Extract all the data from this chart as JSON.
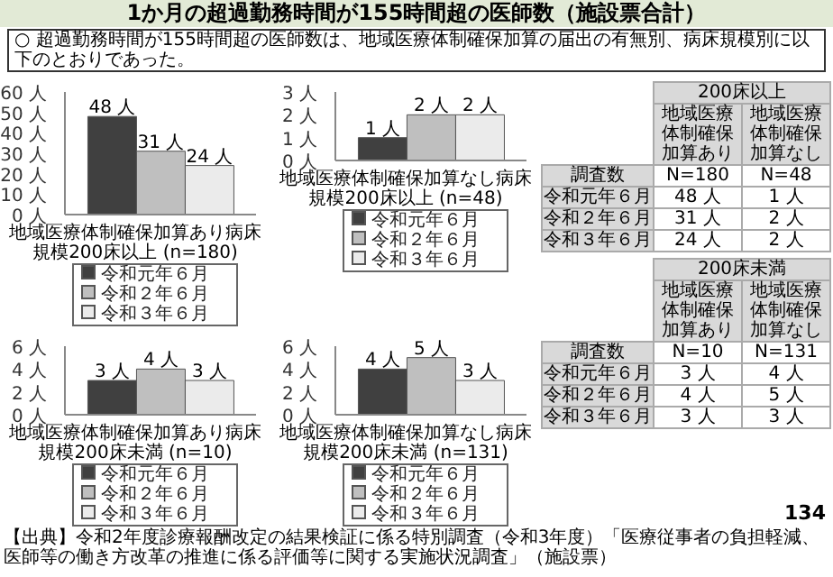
{
  "chart_data": [
    {
      "type": "other",
      "title": "1か月の超過勤務時間が155時間超の医師数（施設票合計）",
      "subtitle": "○ 超過勤務時間が155時間超の医師数は、地域医療体制確保加算の届出の有無別、病床規模別に以下のとおりであった。",
      "annotations": [
        "【出典】令和2年度診療報酬改定の結果検証に係る特別調査（令和3年度）「医療従事者の負担軽減、医師等の働き方改革の推進に係る評価等に関する実施状況調査」（施設票）",
        "134"
      ]
    },
    {
      "type": "bar",
      "categories": [
        null
      ],
      "xlabel": "地域医療体制確保加算あり病床規模200床以上 (n=180)",
      "ylim": [
        0,
        60
      ],
      "yticks": [
        {
          "value": 0,
          "label": "0 人"
        },
        {
          "value": 10,
          "label": "10 人"
        },
        {
          "value": 20,
          "label": "20 人"
        },
        {
          "value": 30,
          "label": "30 人"
        },
        {
          "value": 40,
          "label": "40 人"
        },
        {
          "value": 50,
          "label": "50 人"
        },
        {
          "value": 60,
          "label": "60 人"
        }
      ],
      "legend": "bottom",
      "series": [
        {
          "name": "令和元年６月",
          "color": "#404040",
          "values": [
            48
          ],
          "value_labels": [
            "48 人"
          ]
        },
        {
          "name": "令和２年６月",
          "color": "#bfbfbf",
          "values": [
            31
          ],
          "value_labels": [
            "31 人"
          ]
        },
        {
          "name": "令和３年６月",
          "color": "#ebebeb",
          "values": [
            24
          ],
          "value_labels": [
            "24 人"
          ]
        }
      ]
    },
    {
      "type": "bar",
      "categories": [
        null
      ],
      "xlabel": "地域医療体制確保加算なし病床規模200床以上 (n=48)",
      "ylim": [
        0,
        3
      ],
      "yticks": [
        {
          "value": 0,
          "label": "0 人"
        },
        {
          "value": 1,
          "label": "1 人"
        },
        {
          "value": 2,
          "label": "2 人"
        },
        {
          "value": 3,
          "label": "3 人"
        }
      ],
      "legend": "bottom",
      "series": [
        {
          "name": "令和元年６月",
          "color": "#404040",
          "values": [
            1
          ],
          "value_labels": [
            "1 人"
          ]
        },
        {
          "name": "令和２年６月",
          "color": "#bfbfbf",
          "values": [
            2
          ],
          "value_labels": [
            "2 人"
          ]
        },
        {
          "name": "令和３年６月",
          "color": "#ebebeb",
          "values": [
            2
          ],
          "value_labels": [
            "2 人"
          ]
        }
      ]
    },
    {
      "type": "bar",
      "categories": [
        null
      ],
      "xlabel": "地域医療体制確保加算あり病床規模200床未満 (n=10)",
      "ylim": [
        0,
        6
      ],
      "yticks": [
        {
          "value": 0,
          "label": "0 人"
        },
        {
          "value": 2,
          "label": "2 人"
        },
        {
          "value": 4,
          "label": "4 人"
        },
        {
          "value": 6,
          "label": "6 人"
        }
      ],
      "legend": "bottom",
      "series": [
        {
          "name": "令和元年６月",
          "color": "#404040",
          "values": [
            3
          ],
          "value_labels": [
            "3 人"
          ]
        },
        {
          "name": "令和２年６月",
          "color": "#bfbfbf",
          "values": [
            4
          ],
          "value_labels": [
            "4 人"
          ]
        },
        {
          "name": "令和３年６月",
          "color": "#ebebeb",
          "values": [
            3
          ],
          "value_labels": [
            "3 人"
          ]
        }
      ]
    },
    {
      "type": "bar",
      "categories": [
        null
      ],
      "xlabel": "地域医療体制確保加算なし病床規模200床未満 (n=131)",
      "ylim": [
        0,
        6
      ],
      "yticks": [
        {
          "value": 0,
          "label": "0 人"
        },
        {
          "value": 2,
          "label": "2 人"
        },
        {
          "value": 4,
          "label": "4 人"
        },
        {
          "value": 6,
          "label": "6 人"
        }
      ],
      "legend": "bottom",
      "series": [
        {
          "name": "令和元年６月",
          "color": "#404040",
          "values": [
            4
          ],
          "value_labels": [
            "4 人"
          ]
        },
        {
          "name": "令和２年６月",
          "color": "#bfbfbf",
          "values": [
            5
          ],
          "value_labels": [
            "5 人"
          ]
        },
        {
          "name": "令和３年６月",
          "color": "#ebebeb",
          "values": [
            3
          ],
          "value_labels": [
            "3 人"
          ]
        }
      ]
    },
    {
      "type": "other",
      "title": "200床以上",
      "categories": [
        "地域医療体制確保加算あり",
        "地域医療体制確保加算なし"
      ],
      "y_categories": [
        "調査数",
        "令和元年６月",
        "令和２年６月",
        "令和３年６月"
      ],
      "cell_labels": [
        [
          "N=180",
          "N=48"
        ],
        [
          "48 人",
          "1 人"
        ],
        [
          "31 人",
          "2 人"
        ],
        [
          "24 人",
          "2 人"
        ]
      ]
    },
    {
      "type": "other",
      "title": "200床未満",
      "categories": [
        "地域医療体制確保加算あり",
        "地域医療体制確保加算なし"
      ],
      "y_categories": [
        "調査数",
        "令和元年６月",
        "令和２年６月",
        "令和３年６月"
      ],
      "cell_labels": [
        [
          "N=10",
          "N=131"
        ],
        [
          "3 人",
          "4 人"
        ],
        [
          "4 人",
          "5 人"
        ],
        [
          "3 人",
          "3 人"
        ]
      ]
    }
  ]
}
